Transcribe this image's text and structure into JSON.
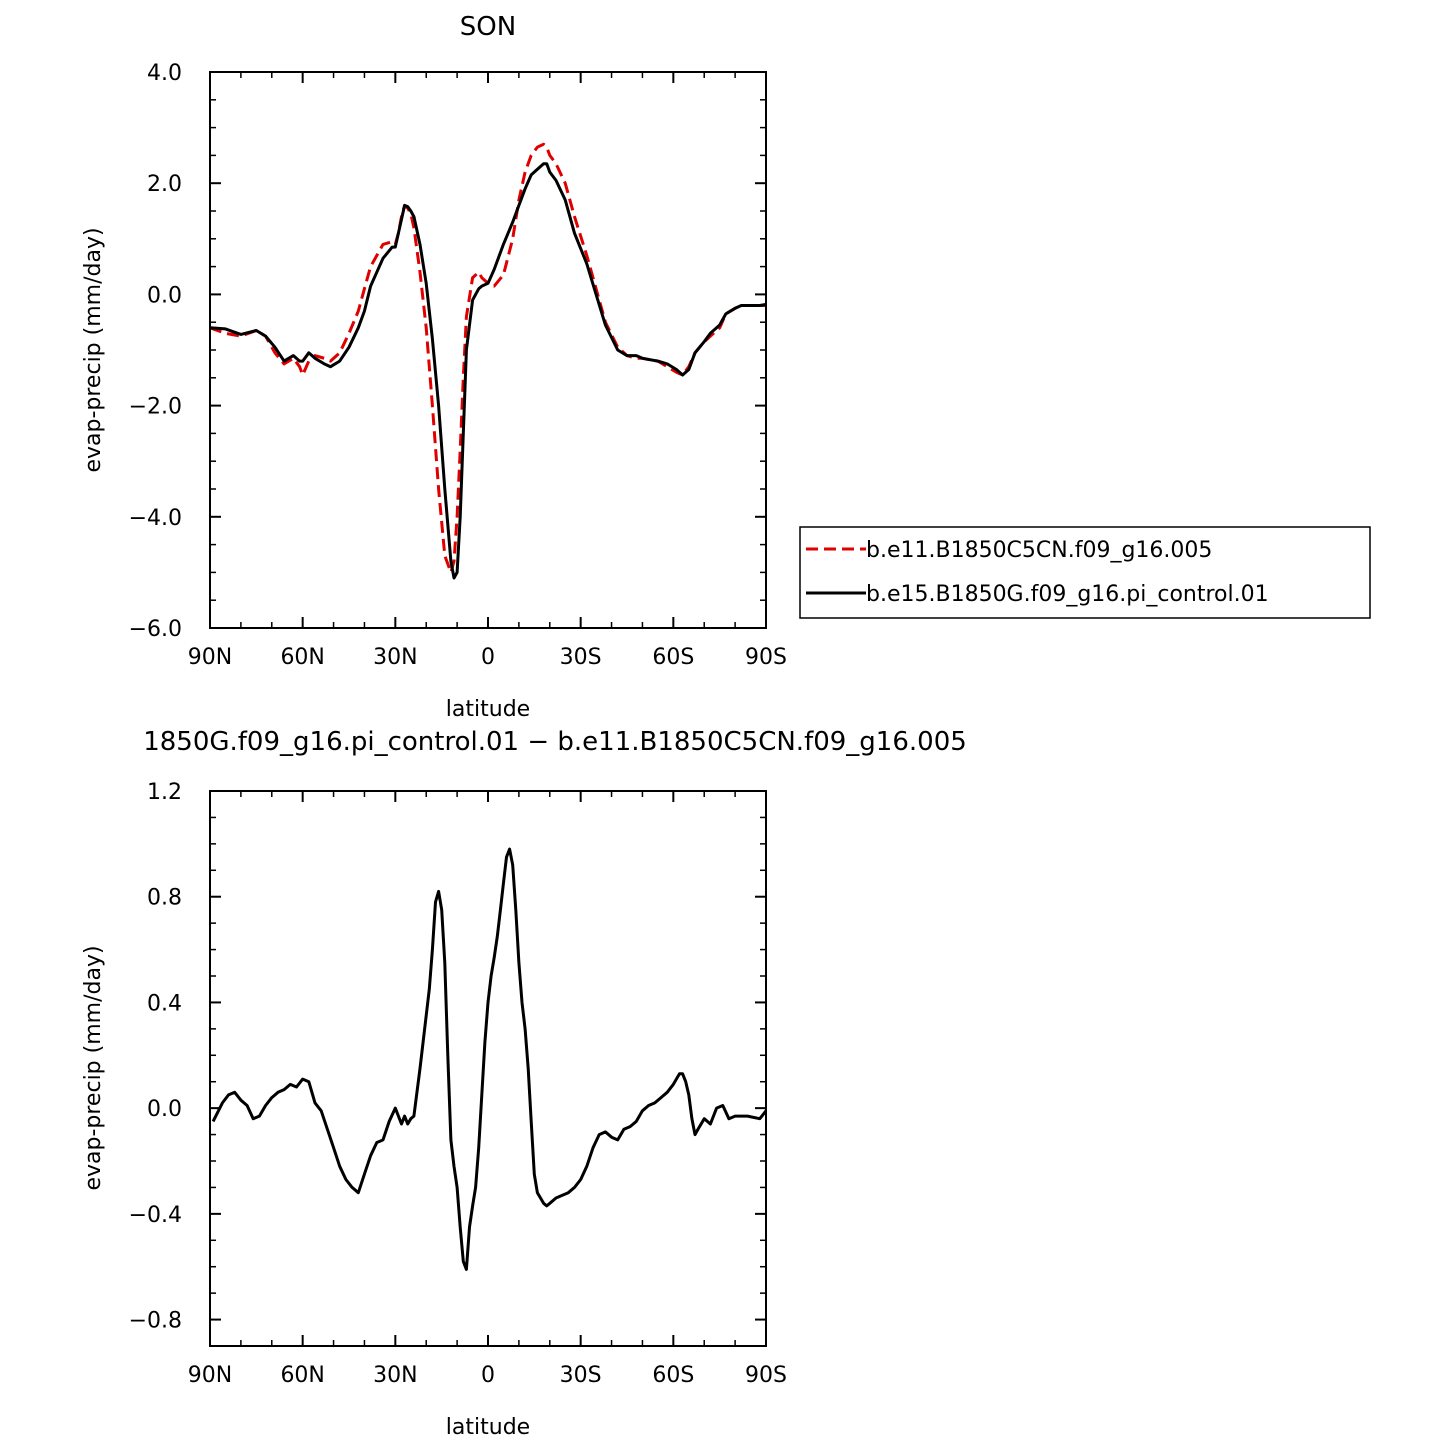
{
  "chart_data": [
    {
      "type": "line",
      "title": "SON",
      "xlabel": "latitude",
      "ylabel": "evap-precip (mm/day)",
      "xlim": [
        90,
        -90
      ],
      "ylim": [
        -6.0,
        4.0
      ],
      "xticks": [
        90,
        60,
        30,
        0,
        -30,
        -60,
        -90
      ],
      "xtick_labels": [
        "90N",
        "60N",
        "30N",
        "0",
        "30S",
        "60S",
        "90S"
      ],
      "yticks": [
        4.0,
        2.0,
        0.0,
        -2.0,
        -4.0,
        -6.0
      ],
      "ytick_labels": [
        "4.0",
        "2.0",
        "0.0",
        "−2.0",
        "−4.0",
        "−6.0"
      ],
      "legend_position": "right",
      "series": [
        {
          "name": "b.e11.B1850C5CN.f09_g16.005",
          "color": "#e00000",
          "dash": "dashed",
          "x": [
            90,
            85,
            80,
            75,
            72,
            69,
            66,
            63,
            61,
            60,
            58,
            56,
            53,
            51,
            48,
            45,
            42,
            40,
            38,
            36,
            34,
            31,
            30,
            29,
            28,
            27,
            26,
            25,
            24,
            22,
            20,
            18,
            16,
            14,
            12,
            11,
            10,
            9,
            8,
            7,
            5,
            3,
            2,
            0,
            -2,
            -5,
            -8,
            -10,
            -12,
            -14,
            -16,
            -18,
            -19,
            -20,
            -22,
            -25,
            -28,
            -32,
            -35,
            -38,
            -42,
            -45,
            -48,
            -50,
            -55,
            -58,
            -61,
            -63,
            -65,
            -67,
            -70,
            -72,
            -75,
            -77,
            -80,
            -82,
            -85,
            -88,
            -90
          ],
          "y": [
            -0.6,
            -0.7,
            -0.75,
            -0.65,
            -0.75,
            -1.05,
            -1.25,
            -1.15,
            -1.3,
            -1.45,
            -1.2,
            -1.1,
            -1.15,
            -1.2,
            -1.05,
            -0.7,
            -0.3,
            0.1,
            0.5,
            0.7,
            0.9,
            0.95,
            0.9,
            1.1,
            1.4,
            1.6,
            1.55,
            1.45,
            1.2,
            0.4,
            -0.6,
            -2.0,
            -3.5,
            -4.7,
            -5.0,
            -4.8,
            -4.0,
            -2.8,
            -1.5,
            -0.4,
            0.3,
            0.4,
            0.3,
            0.2,
            0.15,
            0.35,
            1.0,
            1.7,
            2.2,
            2.5,
            2.65,
            2.7,
            2.65,
            2.5,
            2.35,
            2.0,
            1.4,
            0.7,
            0.1,
            -0.5,
            -0.95,
            -1.1,
            -1.15,
            -1.15,
            -1.2,
            -1.3,
            -1.4,
            -1.45,
            -1.3,
            -1.05,
            -0.85,
            -0.75,
            -0.6,
            -0.35,
            -0.25,
            -0.2,
            -0.2,
            -0.2,
            -0.2
          ]
        },
        {
          "name": "b.e15.B1850G.f09_g16.pi_control.01",
          "color": "#000000",
          "dash": "solid",
          "x": [
            90,
            85,
            80,
            75,
            72,
            69,
            66,
            63,
            61,
            60,
            58,
            56,
            53,
            51,
            48,
            45,
            42,
            40,
            38,
            36,
            34,
            31,
            30,
            29,
            28,
            27,
            26,
            25,
            24,
            22,
            20,
            18,
            16,
            14,
            12,
            11,
            10,
            9,
            8,
            7,
            5,
            3,
            2,
            0,
            -2,
            -5,
            -8,
            -10,
            -12,
            -14,
            -16,
            -18,
            -19,
            -20,
            -22,
            -25,
            -28,
            -32,
            -35,
            -38,
            -42,
            -45,
            -48,
            -50,
            -55,
            -58,
            -61,
            -63,
            -65,
            -67,
            -70,
            -72,
            -75,
            -77,
            -80,
            -82,
            -85,
            -88,
            -90
          ],
          "y": [
            -0.6,
            -0.62,
            -0.72,
            -0.65,
            -0.75,
            -0.95,
            -1.2,
            -1.1,
            -1.2,
            -1.2,
            -1.05,
            -1.15,
            -1.25,
            -1.3,
            -1.2,
            -0.95,
            -0.6,
            -0.3,
            0.15,
            0.4,
            0.65,
            0.85,
            0.85,
            1.1,
            1.35,
            1.6,
            1.58,
            1.5,
            1.4,
            0.9,
            0.2,
            -0.8,
            -2.0,
            -3.5,
            -4.8,
            -5.1,
            -5.0,
            -4.0,
            -2.5,
            -1.0,
            -0.1,
            0.1,
            0.15,
            0.2,
            0.45,
            0.9,
            1.3,
            1.6,
            1.9,
            2.15,
            2.25,
            2.35,
            2.35,
            2.2,
            2.05,
            1.7,
            1.1,
            0.55,
            0.0,
            -0.55,
            -1.0,
            -1.1,
            -1.1,
            -1.15,
            -1.2,
            -1.25,
            -1.35,
            -1.45,
            -1.35,
            -1.05,
            -0.85,
            -0.7,
            -0.55,
            -0.35,
            -0.25,
            -0.2,
            -0.2,
            -0.2,
            -0.18
          ]
        }
      ]
    },
    {
      "type": "line",
      "title": "1850G.f09_g16.pi_control.01 − b.e11.B1850C5CN.f09_g16.005",
      "xlabel": "latitude",
      "ylabel": "evap-precip (mm/day)",
      "xlim": [
        90,
        -90
      ],
      "ylim": [
        -0.9,
        1.2
      ],
      "xticks": [
        90,
        60,
        30,
        0,
        -30,
        -60,
        -90
      ],
      "xtick_labels": [
        "90N",
        "60N",
        "30N",
        "0",
        "30S",
        "60S",
        "90S"
      ],
      "yticks": [
        1.2,
        0.8,
        0.4,
        0.0,
        -0.4,
        -0.8
      ],
      "ytick_labels": [
        "1.2",
        "0.8",
        "0.4",
        "0.0",
        "−0.4",
        "−0.8"
      ],
      "series": [
        {
          "color": "#000000",
          "dash": "solid",
          "x": [
            89,
            86,
            84,
            82,
            80,
            78,
            76,
            74,
            72,
            70,
            68,
            66,
            64,
            62,
            60,
            58,
            56,
            54,
            52,
            50,
            48,
            46,
            44,
            42,
            40,
            38,
            36,
            34,
            32,
            30,
            28,
            27,
            26,
            25,
            24,
            22,
            20,
            19,
            18,
            17,
            16,
            15,
            14,
            13,
            12,
            11,
            10,
            9,
            8,
            7,
            6,
            5,
            4,
            3,
            2,
            1,
            0,
            -1,
            -2,
            -3,
            -4,
            -5,
            -6,
            -7,
            -8,
            -9,
            -10,
            -11,
            -12,
            -13,
            -14,
            -15,
            -16,
            -17,
            -18,
            -19,
            -20,
            -22,
            -24,
            -26,
            -28,
            -30,
            -32,
            -34,
            -36,
            -38,
            -40,
            -42,
            -44,
            -46,
            -48,
            -50,
            -52,
            -54,
            -56,
            -58,
            -60,
            -62,
            -63,
            -64,
            -65,
            -66,
            -67,
            -68,
            -70,
            -72,
            -74,
            -76,
            -78,
            -80,
            -84,
            -88,
            -90
          ],
          "y": [
            -0.05,
            0.02,
            0.05,
            0.06,
            0.03,
            0.01,
            -0.04,
            -0.03,
            0.01,
            0.04,
            0.06,
            0.07,
            0.09,
            0.08,
            0.11,
            0.1,
            0.02,
            -0.01,
            -0.08,
            -0.15,
            -0.22,
            -0.27,
            -0.3,
            -0.32,
            -0.25,
            -0.18,
            -0.13,
            -0.12,
            -0.05,
            0.0,
            -0.06,
            -0.03,
            -0.06,
            -0.04,
            -0.03,
            0.15,
            0.35,
            0.45,
            0.6,
            0.78,
            0.82,
            0.75,
            0.55,
            0.2,
            -0.12,
            -0.22,
            -0.3,
            -0.45,
            -0.58,
            -0.61,
            -0.45,
            -0.37,
            -0.3,
            -0.15,
            0.05,
            0.25,
            0.4,
            0.5,
            0.57,
            0.65,
            0.75,
            0.85,
            0.95,
            0.98,
            0.92,
            0.75,
            0.55,
            0.4,
            0.3,
            0.15,
            -0.05,
            -0.25,
            -0.32,
            -0.34,
            -0.36,
            -0.37,
            -0.36,
            -0.34,
            -0.33,
            -0.32,
            -0.3,
            -0.27,
            -0.22,
            -0.15,
            -0.1,
            -0.09,
            -0.11,
            -0.12,
            -0.08,
            -0.07,
            -0.05,
            -0.01,
            0.01,
            0.02,
            0.04,
            0.06,
            0.09,
            0.13,
            0.13,
            0.1,
            0.05,
            -0.04,
            -0.1,
            -0.08,
            -0.04,
            -0.06,
            0.0,
            0.01,
            -0.04,
            -0.03,
            -0.03,
            -0.04,
            -0.01
          ]
        }
      ]
    }
  ]
}
